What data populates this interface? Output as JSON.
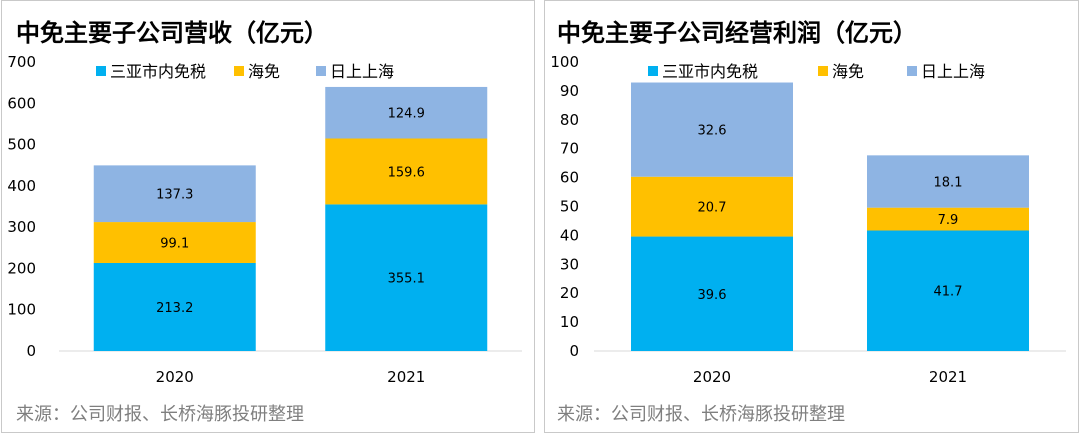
{
  "colors": {
    "sanya": "#00b0f0",
    "haimian": "#ffc000",
    "rishang": "#8eb4e3"
  },
  "chart_data": [
    {
      "type": "bar",
      "stacked": true,
      "title": "中免主要子公司营收（亿元）",
      "source": "来源：公司财报、长桥海豚投研整理",
      "categories": [
        "2020",
        "2021"
      ],
      "ylim": [
        0,
        700
      ],
      "yticks": [
        0,
        100,
        200,
        300,
        400,
        500,
        600,
        700
      ],
      "legend_position": "top",
      "series": [
        {
          "name": "三亚市内免税",
          "values": [
            213.2,
            355.1
          ]
        },
        {
          "name": "海免",
          "values": [
            99.1,
            159.6
          ]
        },
        {
          "name": "日上上海",
          "values": [
            137.3,
            124.9
          ]
        }
      ]
    },
    {
      "type": "bar",
      "stacked": true,
      "title": "中免主要子公司经营利润（亿元）",
      "source": "来源：公司财报、长桥海豚投研整理",
      "categories": [
        "2020",
        "2021"
      ],
      "ylim": [
        0,
        100
      ],
      "yticks": [
        0,
        10,
        20,
        30,
        40,
        50,
        60,
        70,
        80,
        90,
        100
      ],
      "legend_position": "top",
      "series": [
        {
          "name": "三亚市内免税",
          "values": [
            39.6,
            41.7
          ]
        },
        {
          "name": "海免",
          "values": [
            20.7,
            7.9
          ]
        },
        {
          "name": "日上上海",
          "values": [
            32.6,
            18.1
          ]
        }
      ]
    }
  ]
}
